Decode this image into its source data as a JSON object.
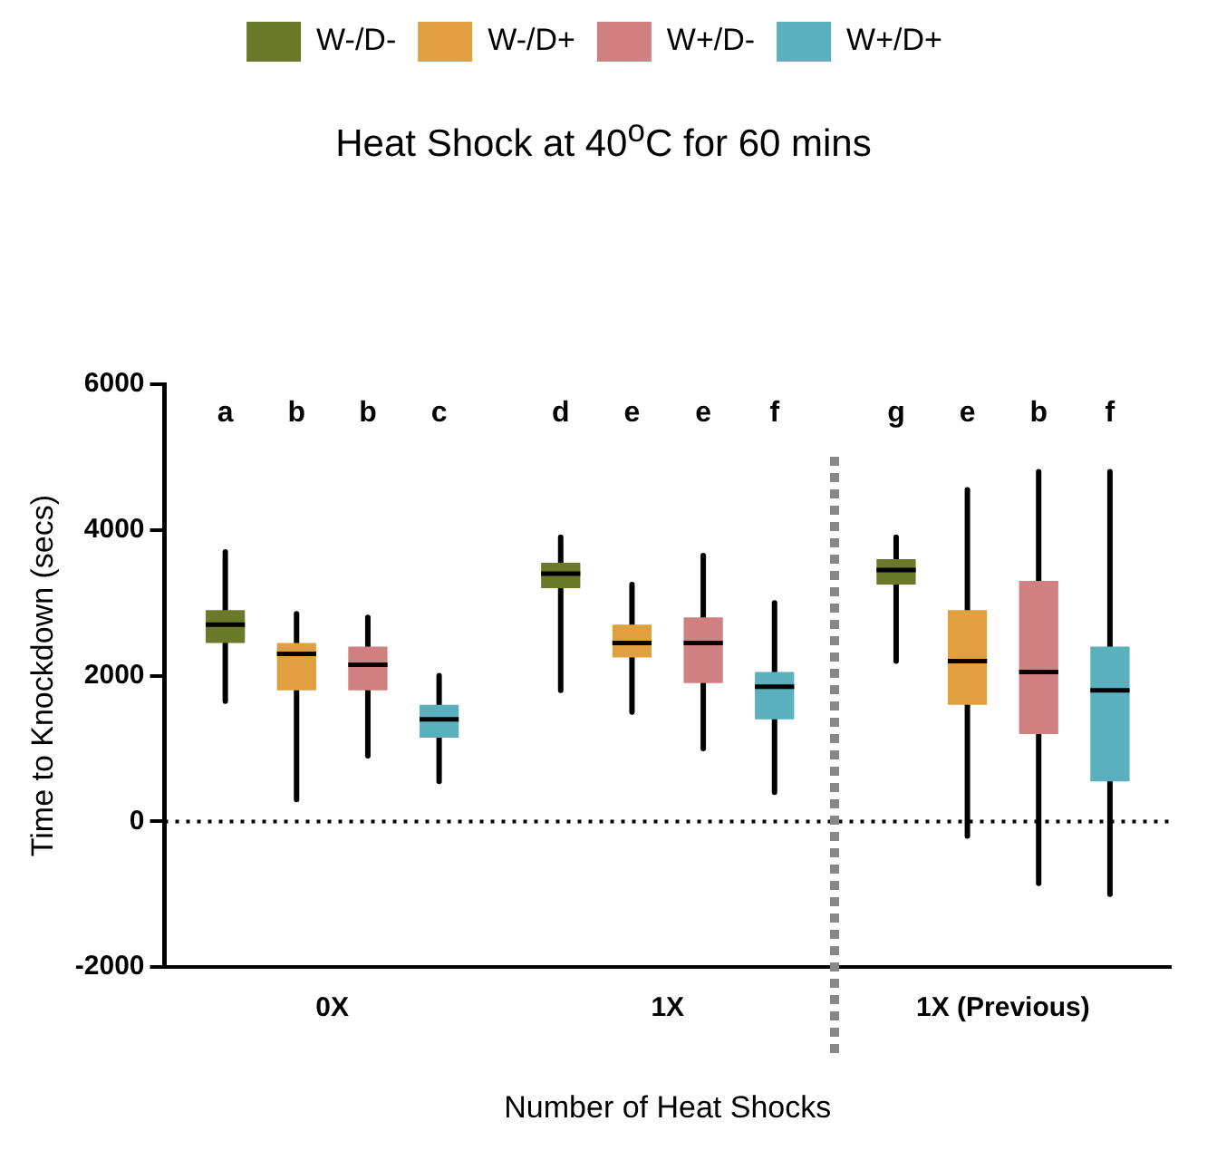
{
  "chart_data": {
    "type": "box",
    "title": "Heat Shock at 40$^{o}$C for 60 mins",
    "xlabel": "Number of Heat Shocks",
    "ylabel": "Time to Knockdown (secs)",
    "categories": [
      "0X",
      "1X",
      "1X (Previous)"
    ],
    "ylim": [
      -2000,
      6000
    ],
    "yticks": [
      -2000,
      0,
      2000,
      4000,
      6000
    ],
    "grid": false,
    "legend": "top",
    "series": [
      {
        "name": "W-/D-",
        "color": "#6b7a2a",
        "boxes": [
          {
            "low": 1650,
            "q1": 2450,
            "median": 2700,
            "q3": 2900,
            "high": 3700
          },
          {
            "low": 1800,
            "q1": 3200,
            "median": 3400,
            "q3": 3550,
            "high": 3900
          },
          {
            "low": 2200,
            "q1": 3250,
            "median": 3450,
            "q3": 3600,
            "high": 3900
          }
        ]
      },
      {
        "name": "W-/D+",
        "color": "#e0a040",
        "boxes": [
          {
            "low": 300,
            "q1": 1800,
            "median": 2300,
            "q3": 2450,
            "high": 2850
          },
          {
            "low": 1500,
            "q1": 2250,
            "median": 2450,
            "q3": 2700,
            "high": 3250
          },
          {
            "low": -200,
            "q1": 1600,
            "median": 2200,
            "q3": 2900,
            "high": 4550
          }
        ]
      },
      {
        "name": "W+/D-",
        "color": "#d08080",
        "boxes": [
          {
            "low": 900,
            "q1": 1800,
            "median": 2150,
            "q3": 2400,
            "high": 2800
          },
          {
            "low": 1000,
            "q1": 1900,
            "median": 2450,
            "q3": 2800,
            "high": 3650
          },
          {
            "low": -850,
            "q1": 1200,
            "median": 2050,
            "q3": 3300,
            "high": 4800
          }
        ]
      },
      {
        "name": "W+/D+",
        "color": "#5ab0bc",
        "boxes": [
          {
            "low": 550,
            "q1": 1150,
            "median": 1400,
            "q3": 1600,
            "high": 2000
          },
          {
            "low": 400,
            "q1": 1400,
            "median": 1850,
            "q3": 2050,
            "high": 3000
          },
          {
            "low": -1000,
            "q1": 550,
            "median": 1800,
            "q3": 2400,
            "high": 4800
          }
        ]
      }
    ],
    "annotations": [
      "a",
      "b",
      "b",
      "c",
      "d",
      "e",
      "e",
      "f",
      "g",
      "e",
      "b",
      "f"
    ],
    "ref_lines": [
      {
        "axis": "y",
        "value": 0,
        "color": "#000000",
        "line_style": "dotted"
      }
    ]
  }
}
